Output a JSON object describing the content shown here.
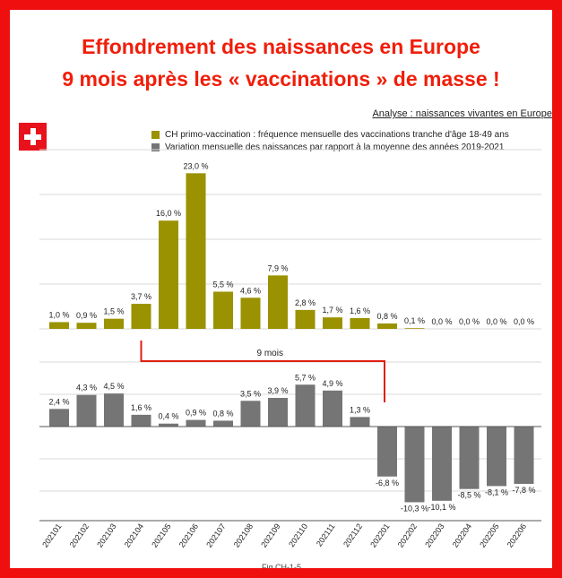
{
  "title_line1": "Effondrement des naissances en Europe",
  "title_line2": "9 mois après les « vaccinations » de masse !",
  "analysis_label": "Analyse : naissances vivantes en Europe",
  "flag_icon": "swiss-flag-icon",
  "footer_caption": "Fig CH-1-5",
  "colors": {
    "accent": "#f01e0a",
    "olive": "#9a9200",
    "gray": "#757575",
    "connector": "#e01e10"
  },
  "chart_data": [
    {
      "type": "bar",
      "categories": [
        "202101",
        "202102",
        "202103",
        "202104",
        "202105",
        "202106",
        "202107",
        "202108",
        "202109",
        "202110",
        "202111",
        "202112",
        "202201",
        "202202",
        "202203",
        "202204",
        "202205",
        "202206"
      ],
      "series": [
        {
          "name": "CH primo-vaccination : fréquence mensuelle des vaccinations tranche d'âge 18-49 ans",
          "values": [
            1.0,
            0.9,
            1.5,
            3.7,
            16.0,
            23.0,
            5.5,
            4.6,
            7.9,
            2.8,
            1.7,
            1.6,
            0.8,
            0.1,
            0.0,
            0.0,
            0.0,
            0.0
          ],
          "labels": [
            "1,0 %",
            "0,9 %",
            "1,5 %",
            "3,7 %",
            "16,0 %",
            "23,0 %",
            "5,5 %",
            "4,6 %",
            "7,9 %",
            "2,8 %",
            "1,7 %",
            "1,6 %",
            "0,8 %",
            "0,1 %",
            "0,0 %",
            "0,0 %",
            "0,0 %",
            "0,0 %"
          ]
        },
        {
          "name": "Variation mensuelle des naissances par rapport à la moyenne des années 2019-2021",
          "values": [
            2.4,
            4.3,
            4.5,
            1.6,
            0.4,
            0.9,
            0.8,
            3.5,
            3.9,
            5.7,
            4.9,
            1.3,
            -6.8,
            -10.3,
            -10.1,
            -8.5,
            -8.1,
            -7.8
          ],
          "labels": [
            "2,4 %",
            "4,3 %",
            "4,5 %",
            "1,6 %",
            "0,4 %",
            "0,9 %",
            "0,8 %",
            "3,5 %",
            "3,9 %",
            "5,7 %",
            "4,9 %",
            "1,3 %",
            "-6,8 %",
            "-10,3 %",
            "-10,1 %",
            "-8,5 %",
            "-8,1 %",
            "-7,8 %"
          ]
        }
      ],
      "annotation": {
        "text": "9 mois",
        "from": "202104",
        "to": "202201"
      }
    }
  ]
}
